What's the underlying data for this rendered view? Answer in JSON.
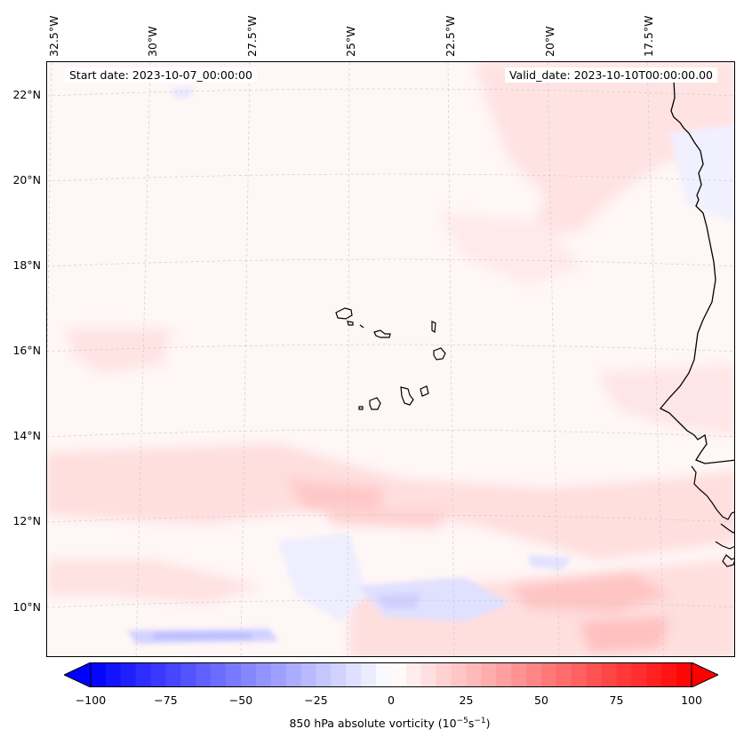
{
  "header": {
    "start_date": "Start date: 2023-10-07_00:00:00",
    "valid_date": "Valid_date: 2023-10-10T00:00:00.00"
  },
  "map": {
    "longitude_labels": [
      "32.5°W",
      "30°W",
      "27.5°W",
      "25°W",
      "22.5°W",
      "20°W",
      "17.5°W"
    ],
    "latitude_labels": [
      "22°N",
      "20°N",
      "18°N",
      "16°N",
      "14°N",
      "12°N",
      "10°N"
    ],
    "field_colors": {
      "positive": "#ff0000",
      "negative": "#0000ff",
      "neutral": "#ffffff",
      "coastline": "#000000"
    }
  },
  "colorbar": {
    "ticks": [
      "−100",
      "−75",
      "−50",
      "−25",
      "0",
      "25",
      "50",
      "75",
      "100"
    ],
    "range": [
      -100,
      100
    ],
    "label_prefix": "850 hPa absolute vorticity (10",
    "label_exp1": "−5",
    "label_mid": "s",
    "label_exp2": "−1",
    "label_suffix": ")"
  }
}
